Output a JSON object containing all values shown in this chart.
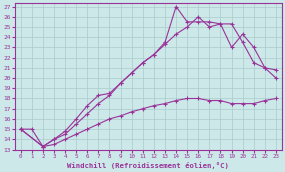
{
  "xlabel": "Windchill (Refroidissement éolien,°C)",
  "bg_color": "#cce8e8",
  "grid_color": "#aacccc",
  "line_color": "#993399",
  "xlim": [
    -0.5,
    23.5
  ],
  "ylim": [
    13,
    27.3
  ],
  "xticks": [
    0,
    1,
    2,
    3,
    4,
    5,
    6,
    7,
    8,
    9,
    10,
    11,
    12,
    13,
    14,
    15,
    16,
    17,
    18,
    19,
    20,
    21,
    22,
    23
  ],
  "yticks": [
    13,
    14,
    15,
    16,
    17,
    18,
    19,
    20,
    21,
    22,
    23,
    24,
    25,
    26,
    27
  ],
  "line1_x": [
    0,
    1,
    2,
    3,
    4,
    5,
    6,
    7,
    8,
    9,
    10,
    11,
    12,
    13,
    14,
    15,
    16,
    17,
    18,
    19,
    20,
    21,
    22,
    23
  ],
  "line1_y": [
    15.0,
    15.0,
    13.3,
    13.5,
    14.0,
    14.5,
    15.0,
    15.5,
    16.0,
    16.3,
    16.7,
    17.0,
    17.3,
    17.5,
    17.8,
    18.0,
    18.0,
    17.8,
    17.8,
    17.5,
    17.5,
    17.5,
    17.8,
    18.0
  ],
  "line2_x": [
    0,
    2,
    3,
    4,
    5,
    6,
    7,
    8,
    9,
    10,
    11,
    12,
    13,
    14,
    15,
    16,
    17,
    18,
    19,
    20,
    21,
    22,
    23
  ],
  "line2_y": [
    15.0,
    13.3,
    14.0,
    14.5,
    15.5,
    16.5,
    17.5,
    18.3,
    19.5,
    20.5,
    21.5,
    22.3,
    23.5,
    27.0,
    25.5,
    25.5,
    25.5,
    25.3,
    23.0,
    24.3,
    23.0,
    21.0,
    20.0
  ],
  "line3_x": [
    0,
    2,
    3,
    4,
    5,
    6,
    7,
    8,
    9,
    10,
    11,
    12,
    13,
    14,
    15,
    16,
    17,
    18,
    19,
    20,
    21,
    22,
    23
  ],
  "line3_y": [
    15.0,
    13.3,
    14.0,
    14.8,
    16.0,
    17.3,
    18.3,
    18.5,
    19.5,
    20.5,
    21.5,
    22.3,
    23.3,
    24.3,
    25.0,
    26.0,
    25.0,
    25.3,
    25.3,
    23.5,
    21.5,
    21.0,
    20.8
  ]
}
